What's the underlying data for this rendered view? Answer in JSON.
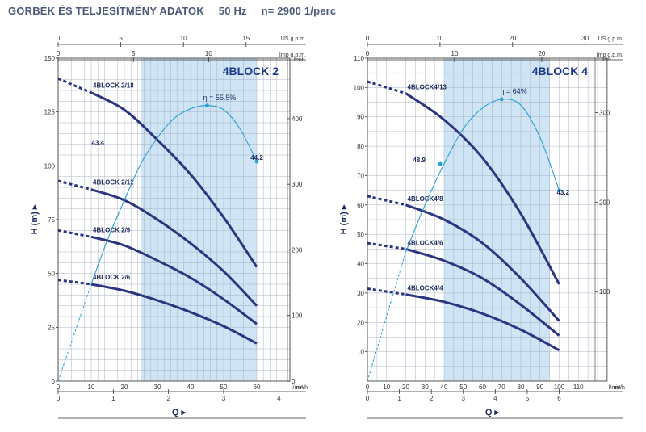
{
  "header": {
    "title": "GÖRBÉK ÉS TELJESÍTMÉNY ADATOK",
    "frequency": "50 Hz",
    "speed": "n= 2900 1/perc"
  },
  "colors": {
    "curve": "#2b3580",
    "efficiency": "#2a9fd6",
    "band": "#cfe4f5",
    "grid": "#9aa3b5",
    "title": "#1e3a8a"
  },
  "chart_data": [
    {
      "type": "line",
      "title": "4BLOCK 2",
      "x_label": "Q",
      "y_label": "H (m)",
      "x_unit": "l/min",
      "x_secondary_unit": "m³/h",
      "top_axis_units": [
        "US g.p.m.",
        "Imp g.p.m."
      ],
      "right_axis_unit": "feet",
      "xlim": [
        0,
        70
      ],
      "ylim": [
        0,
        150
      ],
      "x_ticks": [
        0,
        10,
        20,
        30,
        40,
        50,
        60
      ],
      "y_ticks": [
        0,
        25,
        50,
        75,
        100,
        125,
        150
      ],
      "m3h_ticks": [
        0,
        1,
        2,
        3,
        4
      ],
      "us_gpm_ticks": [
        0,
        5,
        10,
        15
      ],
      "imp_gpm_ticks": [
        0,
        5,
        10
      ],
      "feet_ticks": [
        0,
        100,
        200,
        300,
        400
      ],
      "recommended_range": [
        25,
        60
      ],
      "series": [
        {
          "name": "4BLOCK 2/18",
          "dashed": [
            [
              0,
              140.5
            ],
            [
              10,
              134
            ]
          ],
          "solid": [
            [
              10,
              134
            ],
            [
              20,
              126
            ],
            [
              30,
              112
            ],
            [
              40,
              96
            ],
            [
              50,
              76
            ],
            [
              60,
              53
            ]
          ]
        },
        {
          "name": "4BLOCK 2/12",
          "dashed": [
            [
              0,
              93
            ],
            [
              10,
              89
            ]
          ],
          "solid": [
            [
              10,
              89
            ],
            [
              20,
              84
            ],
            [
              30,
              75
            ],
            [
              40,
              64
            ],
            [
              50,
              51
            ],
            [
              60,
              35
            ]
          ]
        },
        {
          "name": "4BLOCK 2/9",
          "dashed": [
            [
              0,
              70
            ],
            [
              10,
              67
            ]
          ],
          "solid": [
            [
              10,
              67
            ],
            [
              20,
              63
            ],
            [
              30,
              56
            ],
            [
              40,
              48
            ],
            [
              50,
              38
            ],
            [
              60,
              26.5
            ]
          ]
        },
        {
          "name": "4BLOCK 2/6",
          "dashed": [
            [
              0,
              47
            ],
            [
              10,
              45
            ]
          ],
          "solid": [
            [
              10,
              45
            ],
            [
              20,
              42
            ],
            [
              30,
              37.5
            ],
            [
              40,
              32
            ],
            [
              50,
              25.5
            ],
            [
              60,
              17.5
            ]
          ]
        }
      ],
      "efficiency": {
        "label": "η = 55.5%",
        "dashed": [
          [
            0,
            0
          ],
          [
            10,
            45
          ]
        ],
        "solid": [
          [
            10,
            45
          ],
          [
            15,
            66
          ],
          [
            20,
            84
          ],
          [
            25,
            101
          ],
          [
            30,
            113
          ],
          [
            35,
            122
          ],
          [
            40,
            126.5
          ],
          [
            45,
            128
          ],
          [
            50,
            126
          ],
          [
            55,
            117
          ],
          [
            60,
            102
          ]
        ],
        "markers": [
          {
            "x": 45,
            "y": 128
          },
          {
            "x": 60,
            "y": 102
          }
        ],
        "points": [
          {
            "value": "43.4",
            "x": 12,
            "y": 109
          },
          {
            "value": "44.2",
            "x": 60,
            "y": 102
          }
        ]
      }
    },
    {
      "type": "line",
      "title": "4BLOCK 4",
      "x_label": "Q",
      "y_label": "H (m)",
      "x_unit": "l/min",
      "x_secondary_unit": "m³/h",
      "top_axis_units": [
        "US g.p.m.",
        "Imp g.p.m."
      ],
      "right_axis_unit": "feet",
      "xlim": [
        0,
        125
      ],
      "ylim": [
        0,
        110
      ],
      "x_ticks": [
        0,
        10,
        20,
        30,
        40,
        50,
        60,
        70,
        80,
        90,
        100,
        110
      ],
      "y_ticks": [
        10,
        20,
        30,
        40,
        50,
        60,
        70,
        80,
        90,
        100,
        110
      ],
      "m3h_ticks": [
        0,
        1,
        2,
        3,
        4,
        5,
        6
      ],
      "us_gpm_ticks": [
        0,
        10,
        20,
        30
      ],
      "imp_gpm_ticks": [
        0,
        10,
        20
      ],
      "feet_ticks": [
        100,
        200,
        300
      ],
      "recommended_range": [
        40,
        95
      ],
      "series": [
        {
          "name": "4BLOCK4/13",
          "dashed": [
            [
              0,
              102
            ],
            [
              20,
              98
            ]
          ],
          "solid": [
            [
              20,
              98
            ],
            [
              40,
              89
            ],
            [
              60,
              76
            ],
            [
              80,
              57
            ],
            [
              100,
              33
            ]
          ]
        },
        {
          "name": "4BLOCK4/8",
          "dashed": [
            [
              0,
              63
            ],
            [
              20,
              60
            ]
          ],
          "solid": [
            [
              20,
              60
            ],
            [
              40,
              55
            ],
            [
              60,
              47
            ],
            [
              80,
              35
            ],
            [
              100,
              20.5
            ]
          ]
        },
        {
          "name": "4BLOCK4/6",
          "dashed": [
            [
              0,
              47
            ],
            [
              20,
              45
            ]
          ],
          "solid": [
            [
              20,
              45
            ],
            [
              40,
              41
            ],
            [
              60,
              35
            ],
            [
              80,
              26
            ],
            [
              100,
              15.5
            ]
          ]
        },
        {
          "name": "4BLOCK4/4",
          "dashed": [
            [
              0,
              31.5
            ],
            [
              20,
              29.5
            ]
          ],
          "solid": [
            [
              20,
              29.5
            ],
            [
              40,
              27
            ],
            [
              60,
              23
            ],
            [
              80,
              17.5
            ],
            [
              100,
              10.5
            ]
          ]
        }
      ],
      "efficiency": {
        "label": "η = 64%",
        "dashed": [
          [
            0,
            0
          ],
          [
            20,
            44
          ]
        ],
        "solid": [
          [
            20,
            44
          ],
          [
            30,
            60
          ],
          [
            40,
            74
          ],
          [
            50,
            86
          ],
          [
            60,
            93
          ],
          [
            70,
            96
          ],
          [
            80,
            94
          ],
          [
            90,
            83
          ],
          [
            100,
            65
          ]
        ],
        "markers": [
          {
            "x": 70,
            "y": 96
          },
          {
            "x": 38,
            "y": 74
          },
          {
            "x": 100,
            "y": 65
          }
        ],
        "points": [
          {
            "value": "48.9",
            "x": 27,
            "y": 74
          },
          {
            "value": "43.2",
            "x": 102,
            "y": 63
          }
        ]
      }
    }
  ]
}
